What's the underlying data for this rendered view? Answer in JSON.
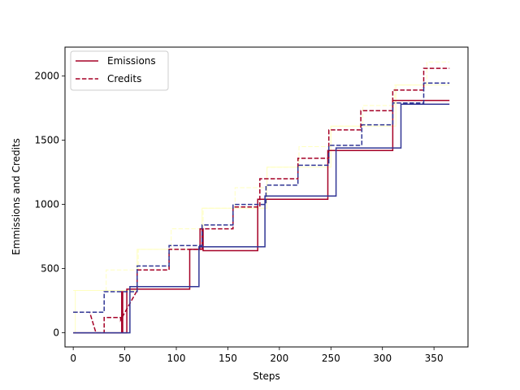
{
  "chart_data": {
    "type": "line",
    "title": "",
    "xlabel": "Steps",
    "ylabel": "Emmissions and Credits",
    "xlim": [
      -8,
      383
    ],
    "ylim": [
      -110,
      2225
    ],
    "xticks": [
      0,
      50,
      100,
      150,
      200,
      250,
      300,
      350
    ],
    "yticks": [
      0,
      500,
      1000,
      1500,
      2000
    ],
    "grid": false,
    "legend": {
      "position": "upper-left",
      "entries": [
        {
          "label": "Emissions",
          "color": "#a50026",
          "style": "solid"
        },
        {
          "label": "Credits",
          "color": "#a50026",
          "style": "dashed"
        }
      ]
    },
    "series": [
      {
        "color": "#ffffbf",
        "style": "solid",
        "width": 1,
        "points": [
          [
            0,
            0
          ],
          [
            2,
            0
          ],
          [
            2,
            330
          ],
          [
            35,
            330
          ],
          [
            35,
            330
          ],
          [
            62,
            330
          ],
          [
            62,
            650
          ],
          [
            95,
            650
          ],
          [
            95,
            650
          ],
          [
            125,
            650
          ],
          [
            125,
            970
          ],
          [
            158,
            970
          ],
          [
            158,
            970
          ],
          [
            188,
            970
          ],
          [
            188,
            1290
          ],
          [
            220,
            1290
          ],
          [
            220,
            1290
          ],
          [
            250,
            1290
          ],
          [
            250,
            1610
          ],
          [
            282,
            1610
          ],
          [
            282,
            1610
          ],
          [
            313,
            1610
          ],
          [
            313,
            1930
          ],
          [
            345,
            1930
          ],
          [
            345,
            1930
          ],
          [
            365,
            1930
          ]
        ]
      },
      {
        "color": "#ffffbf",
        "style": "dashed",
        "width": 1,
        "points": [
          [
            0,
            330
          ],
          [
            32,
            330
          ],
          [
            32,
            490
          ],
          [
            63,
            490
          ],
          [
            63,
            650
          ],
          [
            95,
            650
          ],
          [
            95,
            810
          ],
          [
            126,
            810
          ],
          [
            126,
            970
          ],
          [
            157,
            970
          ],
          [
            157,
            1130
          ],
          [
            188,
            1130
          ],
          [
            188,
            1290
          ],
          [
            219,
            1290
          ],
          [
            219,
            1450
          ],
          [
            250,
            1450
          ],
          [
            250,
            1610
          ],
          [
            281,
            1610
          ],
          [
            281,
            1770
          ],
          [
            312,
            1770
          ],
          [
            312,
            1930
          ],
          [
            343,
            1930
          ],
          [
            343,
            2110
          ],
          [
            365,
            2110
          ]
        ]
      },
      {
        "color": "#a50026",
        "style": "solid",
        "width": 1.5,
        "points": [
          [
            0,
            0
          ],
          [
            47,
            0
          ],
          [
            47,
            320
          ],
          [
            48,
            320
          ],
          [
            48,
            0
          ],
          [
            52,
            0
          ],
          [
            52,
            340
          ],
          [
            113,
            340
          ],
          [
            113,
            650
          ],
          [
            123,
            650
          ],
          [
            123,
            810
          ],
          [
            126,
            810
          ],
          [
            126,
            640
          ],
          [
            179,
            640
          ],
          [
            179,
            1040
          ],
          [
            247,
            1040
          ],
          [
            247,
            1420
          ],
          [
            310,
            1420
          ],
          [
            310,
            1810
          ],
          [
            365,
            1810
          ]
        ]
      },
      {
        "color": "#a50026",
        "style": "dashed",
        "width": 1.5,
        "points": [
          [
            0,
            160
          ],
          [
            16,
            160
          ],
          [
            16,
            160
          ],
          [
            22,
            0
          ],
          [
            30,
            0
          ],
          [
            30,
            120
          ],
          [
            46,
            120
          ],
          [
            46,
            100
          ],
          [
            62,
            330
          ],
          [
            62,
            490
          ],
          [
            93,
            490
          ],
          [
            93,
            650
          ],
          [
            125,
            650
          ],
          [
            125,
            810
          ],
          [
            155,
            810
          ],
          [
            155,
            980
          ],
          [
            181,
            980
          ],
          [
            181,
            1200
          ],
          [
            218,
            1200
          ],
          [
            218,
            1360
          ],
          [
            248,
            1360
          ],
          [
            248,
            1580
          ],
          [
            279,
            1580
          ],
          [
            279,
            1730
          ],
          [
            310,
            1730
          ],
          [
            310,
            1890
          ],
          [
            340,
            1890
          ],
          [
            340,
            2060
          ],
          [
            365,
            2060
          ]
        ]
      },
      {
        "color": "#313695",
        "style": "solid",
        "width": 1.5,
        "points": [
          [
            0,
            0
          ],
          [
            55,
            0
          ],
          [
            55,
            360
          ],
          [
            122,
            360
          ],
          [
            122,
            670
          ],
          [
            186,
            670
          ],
          [
            186,
            1065
          ],
          [
            255,
            1065
          ],
          [
            255,
            1440
          ],
          [
            318,
            1440
          ],
          [
            318,
            1780
          ],
          [
            365,
            1780
          ]
        ]
      },
      {
        "color": "#313695",
        "style": "dashed",
        "width": 1.5,
        "points": [
          [
            0,
            160
          ],
          [
            30,
            160
          ],
          [
            30,
            320
          ],
          [
            62,
            320
          ],
          [
            62,
            520
          ],
          [
            93,
            520
          ],
          [
            93,
            680
          ],
          [
            125,
            680
          ],
          [
            125,
            840
          ],
          [
            155,
            840
          ],
          [
            155,
            1000
          ],
          [
            187,
            1000
          ],
          [
            187,
            1150
          ],
          [
            218,
            1150
          ],
          [
            218,
            1305
          ],
          [
            248,
            1305
          ],
          [
            248,
            1460
          ],
          [
            280,
            1460
          ],
          [
            280,
            1620
          ],
          [
            310,
            1620
          ],
          [
            310,
            1790
          ],
          [
            340,
            1790
          ],
          [
            340,
            1945
          ],
          [
            365,
            1945
          ]
        ]
      }
    ]
  }
}
